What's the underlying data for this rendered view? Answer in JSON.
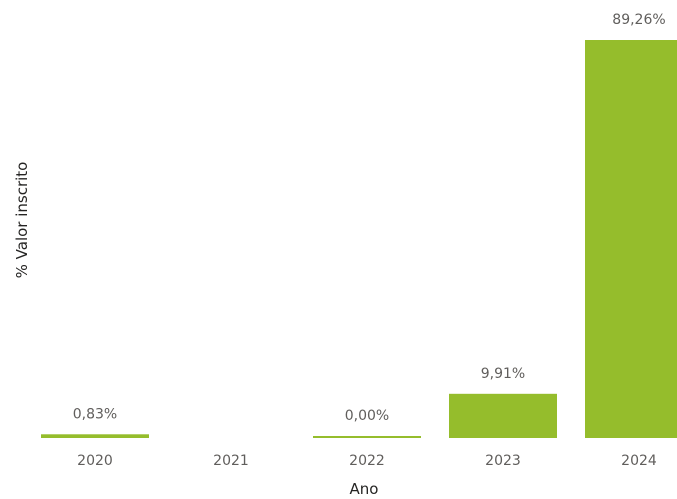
{
  "chart_data": {
    "type": "bar",
    "categories": [
      "2020",
      "2021",
      "2022",
      "2023",
      "2024"
    ],
    "values": [
      0.83,
      null,
      0.0,
      9.91,
      89.26
    ],
    "data_labels": [
      "0,83%",
      "",
      "0,00%",
      "9,91%",
      "89,26%"
    ],
    "xlabel": "Ano",
    "ylabel": "% Valor inscrito",
    "ylim": [
      0,
      89.26
    ],
    "grid": false,
    "legend": "none",
    "bar_color": "#95bd2c"
  }
}
